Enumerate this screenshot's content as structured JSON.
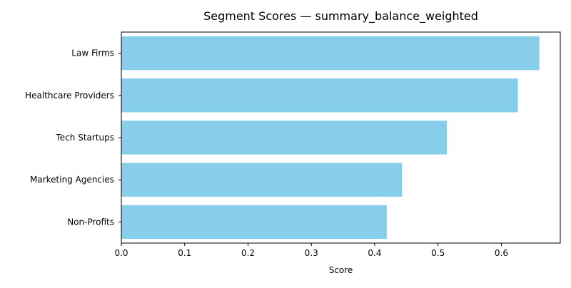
{
  "chart_data": {
    "type": "bar",
    "orientation": "horizontal",
    "title": "Segment Scores — summary_balance_weighted",
    "xlabel": "Score",
    "ylabel": "",
    "categories": [
      "Law Firms",
      "Healthcare Providers",
      "Tech Startups",
      "Marketing Agencies",
      "Non-Profits"
    ],
    "values": [
      0.66,
      0.626,
      0.514,
      0.443,
      0.419
    ],
    "xlim": [
      0,
      0.693
    ],
    "xticks": [
      0.0,
      0.1,
      0.2,
      0.3,
      0.4,
      0.5,
      0.6
    ],
    "xtick_labels": [
      "0.0",
      "0.1",
      "0.2",
      "0.3",
      "0.4",
      "0.5",
      "0.6"
    ],
    "grid": false,
    "bar_color": "#87ceeb"
  }
}
